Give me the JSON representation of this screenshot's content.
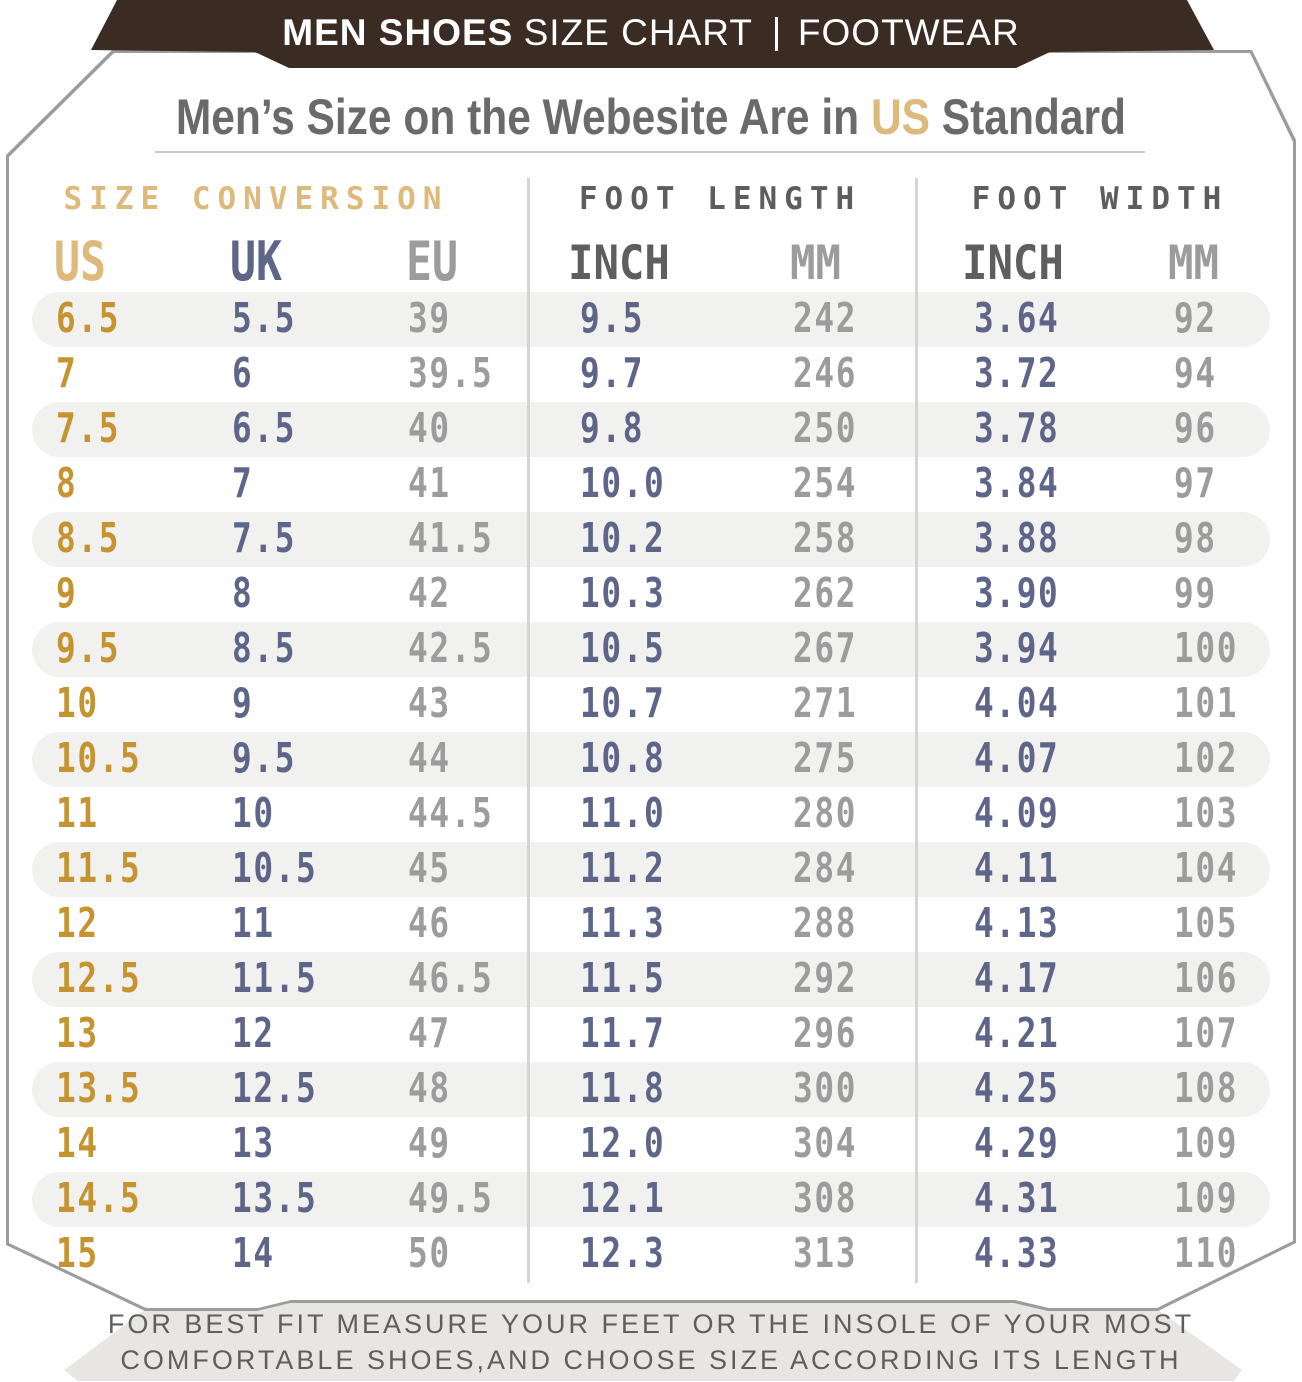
{
  "banner": {
    "title_bold": "MEN SHOES",
    "title_regular": "SIZE CHART",
    "right_label": "FOOTWEAR"
  },
  "heading": {
    "pre": "Men’s Size on the Webesite Are in ",
    "em": "US",
    "post": " Standard"
  },
  "groups": [
    {
      "label": "SIZE CONVERSION"
    },
    {
      "label": "FOOT LENGTH"
    },
    {
      "label": "FOOT WIDTH"
    }
  ],
  "columns": [
    "US",
    "UK",
    "EU",
    "INCH",
    "MM",
    "INCH",
    "MM"
  ],
  "rows": [
    [
      "6.5",
      "5.5",
      "39",
      "9.5",
      "242",
      "3.64",
      "92"
    ],
    [
      "7",
      "6",
      "39.5",
      "9.7",
      "246",
      "3.72",
      "94"
    ],
    [
      "7.5",
      "6.5",
      "40",
      "9.8",
      "250",
      "3.78",
      "96"
    ],
    [
      "8",
      "7",
      "41",
      "10.0",
      "254",
      "3.84",
      "97"
    ],
    [
      "8.5",
      "7.5",
      "41.5",
      "10.2",
      "258",
      "3.88",
      "98"
    ],
    [
      "9",
      "8",
      "42",
      "10.3",
      "262",
      "3.90",
      "99"
    ],
    [
      "9.5",
      "8.5",
      "42.5",
      "10.5",
      "267",
      "3.94",
      "100"
    ],
    [
      "10",
      "9",
      "43",
      "10.7",
      "271",
      "4.04",
      "101"
    ],
    [
      "10.5",
      "9.5",
      "44",
      "10.8",
      "275",
      "4.07",
      "102"
    ],
    [
      "11",
      "10",
      "44.5",
      "11.0",
      "280",
      "4.09",
      "103"
    ],
    [
      "11.5",
      "10.5",
      "45",
      "11.2",
      "284",
      "4.11",
      "104"
    ],
    [
      "12",
      "11",
      "46",
      "11.3",
      "288",
      "4.13",
      "105"
    ],
    [
      "12.5",
      "11.5",
      "46.5",
      "11.5",
      "292",
      "4.17",
      "106"
    ],
    [
      "13",
      "12",
      "47",
      "11.7",
      "296",
      "4.21",
      "107"
    ],
    [
      "13.5",
      "12.5",
      "48",
      "11.8",
      "300",
      "4.25",
      "108"
    ],
    [
      "14",
      "13",
      "49",
      "12.0",
      "304",
      "4.29",
      "109"
    ],
    [
      "14.5",
      "13.5",
      "49.5",
      "12.1",
      "308",
      "4.31",
      "109"
    ],
    [
      "15",
      "14",
      "50",
      "12.3",
      "313",
      "4.33",
      "110"
    ]
  ],
  "footer": {
    "line1": "FOR BEST FIT MEASURE YOUR FEET OR THE INSOLE OF YOUR MOST",
    "line2": "COMFORTABLE SHOES,AND CHOOSE SIZE ACCORDING ITS LENGTH"
  },
  "colors": {
    "banner_brown": "#3a2b23",
    "gold_light": "#ddb97c",
    "gold_deep": "#c5932f",
    "navy": "#5d6589",
    "value_gray": "#9c9c9c",
    "header_dark_gray": "#5e5e5e",
    "title_gray": "#6a6a6a",
    "row_stripe": "#f1f1ef",
    "footer_bg": "#e7e6e3",
    "card_border": "#9c9c9c"
  }
}
